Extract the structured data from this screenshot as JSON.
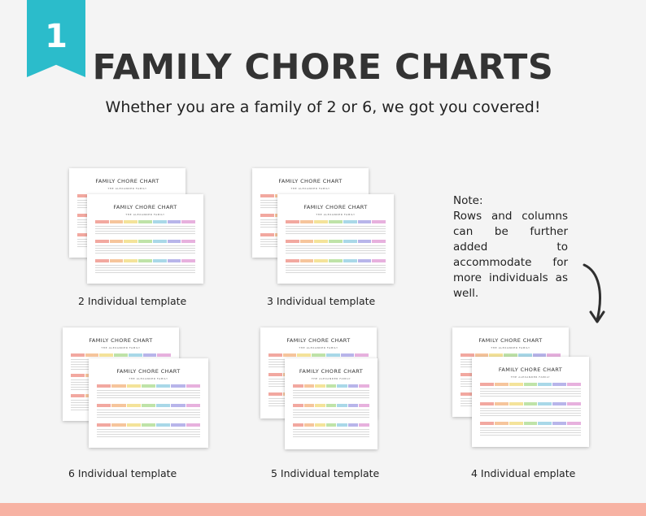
{
  "badge": {
    "number": "1"
  },
  "header": {
    "title": "FAMILY CHORE CHARTS",
    "subtitle": "Whether you are a family of 2 or 6, we got you covered!"
  },
  "sheet": {
    "title": "FAMILY CHORE CHART",
    "family_name": "THE ALEXANDER FAMILY"
  },
  "templates": [
    {
      "caption": "2 Individual template"
    },
    {
      "caption": "3 Individual template"
    },
    {
      "caption": "6 Individual template"
    },
    {
      "caption": "5 Individual template"
    },
    {
      "caption": "4 Individual emplate"
    }
  ],
  "note": {
    "heading": "Note:",
    "body": "Rows and columns can be further added to accommodate for more individuals as well."
  },
  "colors": {
    "accent": "#2bbccb",
    "footer": "#f7b2a3",
    "days": [
      "#f2a8a0",
      "#f6c59c",
      "#f4e39a",
      "#bfe3a8",
      "#a9d8e8",
      "#b8b5ea",
      "#e7b1de"
    ]
  },
  "icons": {
    "arrow": "curved-arrow-icon"
  }
}
